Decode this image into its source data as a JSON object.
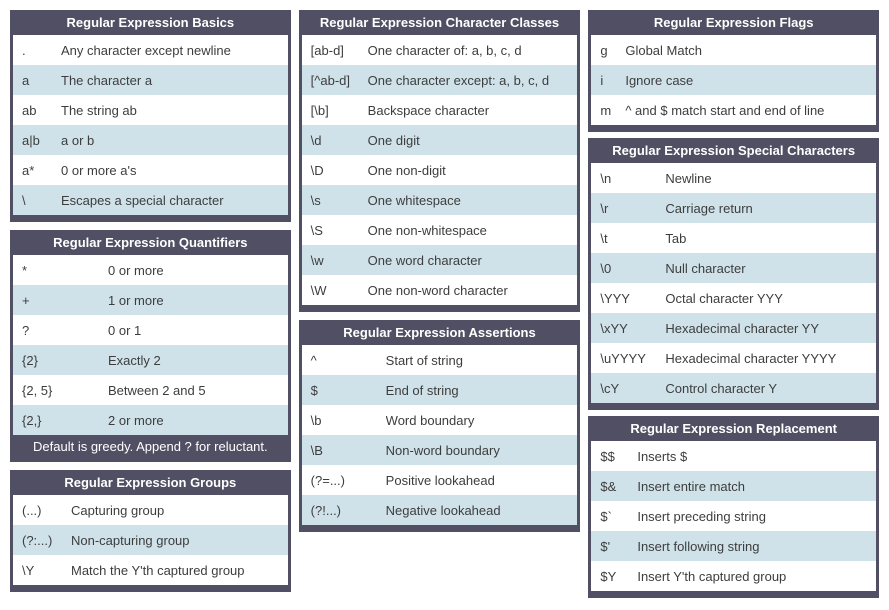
{
  "colors": {
    "header_bg": "#514f63",
    "row_bg": "#ffffff",
    "row_alt_bg": "#cfe2e9",
    "header_text": "#ffffff",
    "cell_text": "#3d3d3d",
    "page_bg": "#ffffff"
  },
  "tables": {
    "basics": {
      "title": "Regular Expression Basics",
      "rows": [
        {
          "k": ".",
          "d": "Any character except newline"
        },
        {
          "k": "a",
          "d": "The character a"
        },
        {
          "k": "ab",
          "d": "The string ab"
        },
        {
          "k": "a|b",
          "d": "a or b"
        },
        {
          "k": "a*",
          "d": "0 or more a's"
        },
        {
          "k": "\\",
          "d": "Escapes a special character"
        }
      ]
    },
    "quantifiers": {
      "title": "Regular Expression Quantifiers",
      "rows": [
        {
          "k": "*",
          "d": "0 or more"
        },
        {
          "k": "+",
          "d": "1 or more"
        },
        {
          "k": "?",
          "d": "0 or 1"
        },
        {
          "k": "{2}",
          "d": "Exactly 2"
        },
        {
          "k": "{2, 5}",
          "d": "Between 2 and 5"
        },
        {
          "k": "{2,}",
          "d": "2 or more"
        }
      ],
      "footer": "Default is greedy. Append ? for reluctant."
    },
    "groups": {
      "title": "Regular Expression Groups",
      "rows": [
        {
          "k": "(...)",
          "d": "Capturing group"
        },
        {
          "k": "(?:...)",
          "d": "Non-capturing group"
        },
        {
          "k": "\\Y",
          "d": "Match the Y'th captured group"
        }
      ]
    },
    "char_classes": {
      "title": "Regular Expression Character Classes",
      "rows": [
        {
          "k": "[ab-d]",
          "d": "One character of: a, b, c, d"
        },
        {
          "k": "[^ab-d]",
          "d": "One character except: a, b, c, d"
        },
        {
          "k": "[\\b]",
          "d": "Backspace character"
        },
        {
          "k": "\\d",
          "d": "One digit"
        },
        {
          "k": "\\D",
          "d": "One non-digit"
        },
        {
          "k": "\\s",
          "d": "One whitespace"
        },
        {
          "k": "\\S",
          "d": "One non-whitespace"
        },
        {
          "k": "\\w",
          "d": "One word character"
        },
        {
          "k": "\\W",
          "d": "One non-word character"
        }
      ]
    },
    "assertions": {
      "title": "Regular Expression Assertions",
      "rows": [
        {
          "k": "^",
          "d": "Start of string"
        },
        {
          "k": "$",
          "d": "End of string"
        },
        {
          "k": "\\b",
          "d": "Word boundary"
        },
        {
          "k": "\\B",
          "d": "Non-word boundary"
        },
        {
          "k": "(?=...)",
          "d": "Positive lookahead"
        },
        {
          "k": "(?!...)",
          "d": "Negative lookahead"
        }
      ]
    },
    "flags": {
      "title": "Regular Expression Flags",
      "rows": [
        {
          "k": "g",
          "d": "Global Match"
        },
        {
          "k": "i",
          "d": "Ignore case"
        },
        {
          "k": "m",
          "d": "^ and $ match start and end of line"
        }
      ]
    },
    "special_chars": {
      "title": "Regular Expression Special Characters",
      "rows": [
        {
          "k": "\\n",
          "d": "Newline"
        },
        {
          "k": "\\r",
          "d": "Carriage return"
        },
        {
          "k": "\\t",
          "d": "Tab"
        },
        {
          "k": "\\0",
          "d": "Null character"
        },
        {
          "k": "\\YYY",
          "d": "Octal character YYY"
        },
        {
          "k": "\\xYY",
          "d": "Hexadecimal character YY"
        },
        {
          "k": "\\uYYYY",
          "d": "Hexadecimal character YYYY"
        },
        {
          "k": "\\cY",
          "d": "Control character Y"
        }
      ]
    },
    "replacement": {
      "title": "Regular Expression Replacement",
      "rows": [
        {
          "k": "$$",
          "d": "Inserts $"
        },
        {
          "k": "$&",
          "d": "Insert entire match"
        },
        {
          "k": "$`",
          "d": "Insert preceding string"
        },
        {
          "k": "$'",
          "d": "Insert following string"
        },
        {
          "k": "$Y",
          "d": "Insert Y'th captured group"
        }
      ]
    }
  }
}
